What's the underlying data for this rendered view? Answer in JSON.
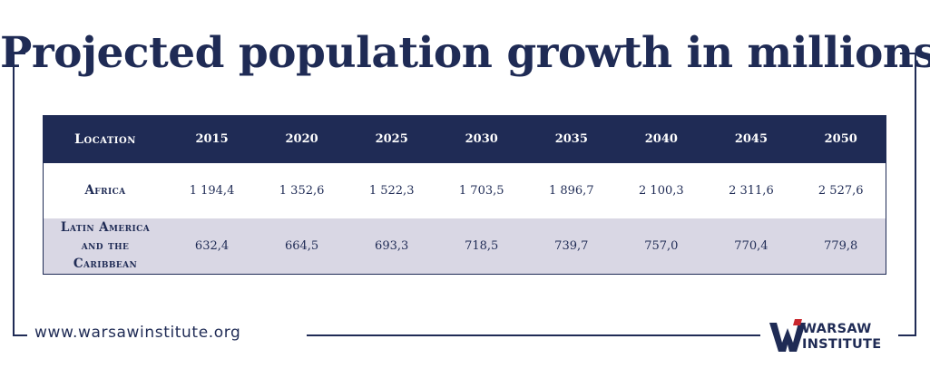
{
  "title": "Projected population growth in millions",
  "chart_data": {
    "type": "table",
    "columns": [
      "Location",
      "2015",
      "2020",
      "2025",
      "2030",
      "2035",
      "2040",
      "2045",
      "2050"
    ],
    "rows": [
      {
        "location": "Africa",
        "values": [
          "1 194,4",
          "1 352,6",
          "1 522,3",
          "1 703,5",
          "1 896,7",
          "2 100,3",
          "2 311,6",
          "2 527,6"
        ]
      },
      {
        "location": "Latin America and the Caribbean",
        "values": [
          "632,4",
          "664,5",
          "693,3",
          "718,5",
          "739,7",
          "757,0",
          "770,4",
          "779,8"
        ]
      }
    ]
  },
  "footer": {
    "url": "www.warsawinstitute.org",
    "logo_text": "WARSAW INSTITUTE"
  },
  "colors": {
    "navy": "#1f2b55",
    "header_bg": "#1f2b55",
    "alt_row_bg": "#d9d7e4",
    "logo_accent": "#c9272e"
  }
}
